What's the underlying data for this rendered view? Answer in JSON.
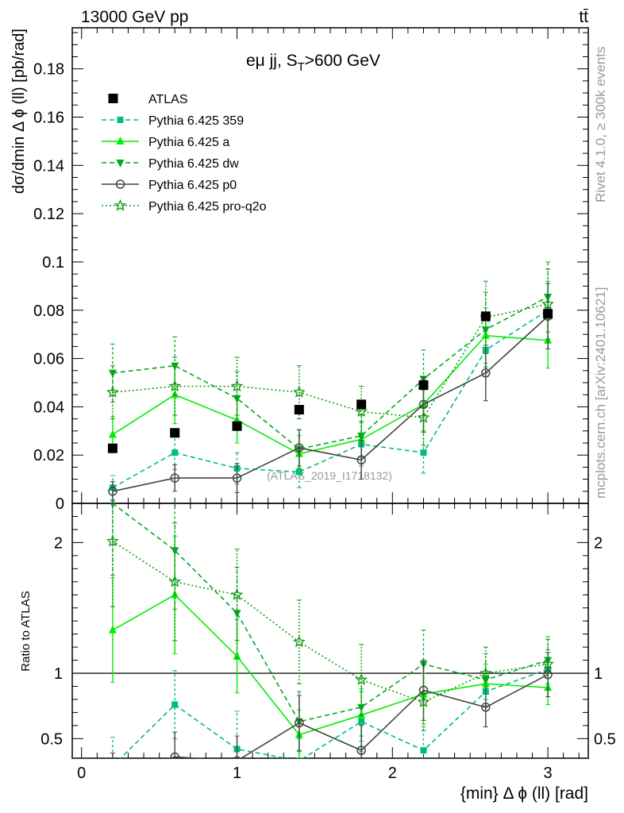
{
  "header": {
    "energy_label": "13000 GeV pp",
    "process_label": "tt̄"
  },
  "side_text": {
    "rivet": "Rivet 4.1.0, ≥ 300k events",
    "mcplots": "mcplots.cern.ch [arXiv:2401.10621]"
  },
  "chart_data": {
    "type": "scatter",
    "title": "eμ jj, S_T>600 GeV",
    "title_main": "eμ jj, S",
    "title_sub": "T",
    "title_tail": ">600 GeV",
    "analysis_label": "(ATLAS_2019_I1718132)",
    "xlabel": "{min} Δ ϕ (ll) [rad]",
    "ylabel": "dσ/dmin Δ ϕ (ll) [pb/rad]",
    "ratio_ylabel": "Ratio to ATLAS",
    "xlim": [
      -0.06,
      3.26
    ],
    "ylim": [
      0,
      0.197
    ],
    "ratio_ylim": [
      0.35,
      2.3
    ],
    "x_ticks": [
      0,
      1,
      2,
      3
    ],
    "x_tick_labels": [
      "0",
      "1",
      "2",
      "3"
    ],
    "y_ticks": [
      0,
      0.02,
      0.04,
      0.06,
      0.08,
      0.1,
      0.12,
      0.14,
      0.16,
      0.18
    ],
    "y_tick_labels": [
      "0",
      "0.02",
      "0.04",
      "0.06",
      "0.08",
      "0.1",
      "0.12",
      "0.14",
      "0.16",
      "0.18"
    ],
    "ratio_ticks": [
      0.5,
      1,
      2
    ],
    "ratio_tick_labels": [
      "0.5",
      "1",
      "2"
    ],
    "x": [
      0.2,
      0.6,
      1.0,
      1.4,
      1.8,
      2.2,
      2.6,
      3.0
    ],
    "data": {
      "name": "ATLAS",
      "values": [
        0.0228,
        0.0292,
        0.032,
        0.0388,
        0.041,
        0.049,
        0.0775,
        0.0785
      ]
    },
    "series": [
      {
        "name": "Pythia 6.425 359",
        "color": "#00bb88",
        "dash": "6,4",
        "marker": "square",
        "values": [
          0.0065,
          0.021,
          0.0145,
          0.013,
          0.0245,
          0.021,
          0.0635,
          0.08
        ],
        "errors": [
          0.005,
          0.007,
          0.0065,
          0.0065,
          0.009,
          0.0085,
          0.0095,
          0.012
        ],
        "ratio": [
          0.29,
          0.76,
          0.42,
          0.33,
          0.63,
          0.41,
          0.86,
          1.03
        ],
        "ratio_errors": [
          0.22,
          0.26,
          0.29,
          0.17,
          0.23,
          0.18,
          0.12,
          0.15
        ]
      },
      {
        "name": "Pythia 6.425 a",
        "color": "#00ee00",
        "dash": "",
        "marker": "triangle-up",
        "values": [
          0.0285,
          0.045,
          0.0345,
          0.0205,
          0.0265,
          0.041,
          0.0695,
          0.0675
        ],
        "errors": [
          0.0075,
          0.012,
          0.0095,
          0.0075,
          0.0075,
          0.011,
          0.0115,
          0.0115
        ],
        "ratio": [
          1.33,
          1.6,
          1.13,
          0.53,
          0.68,
          0.84,
          0.92,
          0.89
        ],
        "ratio_errors": [
          0.4,
          0.45,
          0.28,
          0.19,
          0.2,
          0.23,
          0.15,
          0.13
        ]
      },
      {
        "name": "Pythia 6.425 dw",
        "color": "#00aa22",
        "dash": "6,4",
        "marker": "triangle-down",
        "values": [
          0.054,
          0.057,
          0.0435,
          0.0225,
          0.028,
          0.0515,
          0.072,
          0.0855
        ],
        "errors": [
          0.012,
          0.012,
          0.011,
          0.008,
          0.0085,
          0.012,
          0.0155,
          0.0145
        ],
        "ratio": [
          2.3,
          1.94,
          1.46,
          0.63,
          0.74,
          1.07,
          0.95,
          1.1
        ],
        "ratio_errors": [
          0.55,
          0.45,
          0.35,
          0.23,
          0.22,
          0.26,
          0.2,
          0.18
        ]
      },
      {
        "name": "Pythia 6.425 p0",
        "color": "#444444",
        "dash": "",
        "marker": "circle-open",
        "values": [
          0.005,
          0.0105,
          0.0105,
          0.023,
          0.018,
          0.041,
          0.054,
          0.0775
        ],
        "errors": [
          0.004,
          0.0055,
          0.006,
          0.0075,
          0.008,
          0.0115,
          0.0115,
          0.0135
        ],
        "ratio": [
          0.22,
          0.36,
          0.33,
          0.62,
          0.41,
          0.87,
          0.74,
          0.99
        ],
        "ratio_errors": [
          0.17,
          0.19,
          0.19,
          0.21,
          0.19,
          0.23,
          0.15,
          0.17
        ]
      },
      {
        "name": "Pythia 6.425 pro-q2o",
        "color": "#119911",
        "dash": "2,3",
        "marker": "star-open",
        "values": [
          0.046,
          0.0485,
          0.0485,
          0.046,
          0.038,
          0.0355,
          0.077,
          0.0825
        ],
        "errors": [
          0.011,
          0.012,
          0.012,
          0.011,
          0.0105,
          0.0115,
          0.015,
          0.0145
        ],
        "ratio": [
          2.01,
          1.7,
          1.6,
          1.24,
          0.95,
          0.78,
          1.0,
          1.07
        ],
        "ratio_errors": [
          0.5,
          0.45,
          0.35,
          0.32,
          0.27,
          0.22,
          0.2,
          0.19
        ]
      }
    ]
  }
}
